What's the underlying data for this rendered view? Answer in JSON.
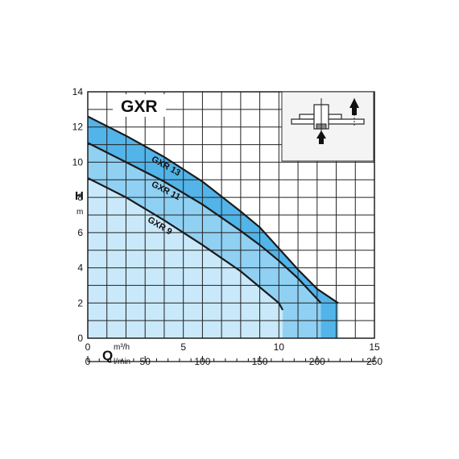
{
  "chart_data": {
    "type": "line",
    "title": "GXR",
    "ylabel": "H",
    "yunit": "m",
    "xlabel": "Q",
    "xunit_primary": "m³/h",
    "xunit_secondary": "l/min",
    "xlim": [
      0,
      15
    ],
    "ylim": [
      0,
      14
    ],
    "x_ticks": [
      "0",
      "5",
      "10",
      "15"
    ],
    "x_ticks_values": [
      0,
      5,
      10,
      15
    ],
    "x2_ticks": [
      "0",
      "50",
      "100",
      "150",
      "200",
      "250"
    ],
    "x2_ticks_values": [
      0,
      50,
      100,
      150,
      200,
      250
    ],
    "y_ticks": [
      "0",
      "2",
      "4",
      "6",
      "8",
      "10",
      "12",
      "14"
    ],
    "y_ticks_values": [
      0,
      2,
      4,
      6,
      8,
      10,
      12,
      14
    ],
    "grid": true,
    "series": [
      {
        "name": "GXR 13",
        "x": [
          0,
          2,
          4,
          6,
          8,
          9,
          10,
          11,
          12,
          13.1
        ],
        "y": [
          12.6,
          11.5,
          10.3,
          8.9,
          7.2,
          6.3,
          5.1,
          3.9,
          2.8,
          2.0
        ]
      },
      {
        "name": "GXR 11",
        "x": [
          0,
          2,
          4,
          6,
          8,
          9,
          10,
          11,
          12.2
        ],
        "y": [
          11.1,
          10.0,
          8.9,
          7.6,
          6.1,
          5.3,
          4.4,
          3.4,
          2.0
        ]
      },
      {
        "name": "GXR 9",
        "x": [
          0,
          2,
          4,
          6,
          8,
          9,
          10,
          10.2
        ],
        "y": [
          9.1,
          8.0,
          6.7,
          5.3,
          3.8,
          2.9,
          2.0,
          1.6
        ]
      }
    ],
    "colors": {
      "band_dark": "#52b4e8",
      "band_mid": "#8fd0f3",
      "band_light": "#c9e9fb",
      "line": "#1a1a1a",
      "grid": "#222222",
      "inset_bg": "#f4f4f4"
    }
  },
  "inset": {
    "icon": "pump-diagram-icon"
  }
}
